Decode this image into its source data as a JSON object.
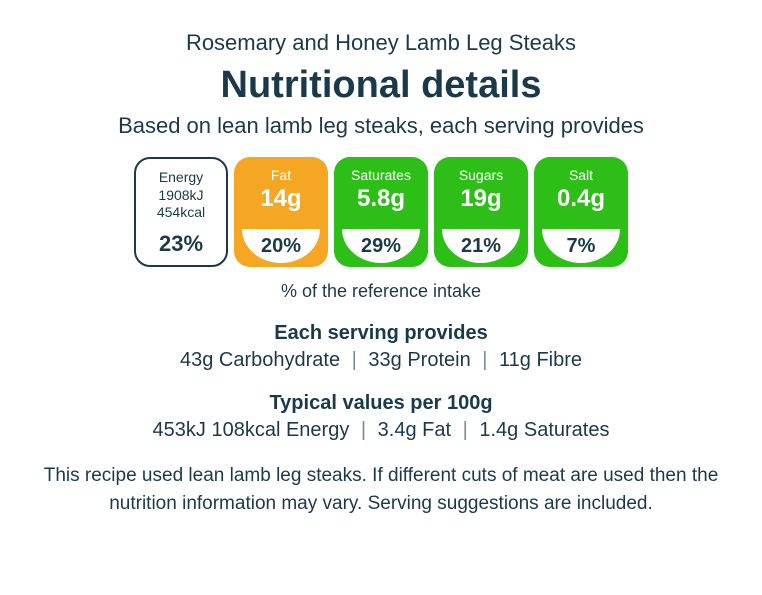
{
  "recipe_title": "Rosemary and Honey Lamb Leg Steaks",
  "heading": "Nutritional details",
  "subtitle": "Based on lean lamb leg steaks, each serving provides",
  "badges": [
    {
      "label": "Energy",
      "value": "",
      "sub1": "1908kJ",
      "sub2": "454kcal",
      "percent": "23%",
      "bg": "white",
      "color": "#ffffff"
    },
    {
      "label": "Fat",
      "value": "14g",
      "percent": "20%",
      "bg": "filled",
      "color": "#f5a623"
    },
    {
      "label": "Saturates",
      "value": "5.8g",
      "percent": "29%",
      "bg": "filled",
      "color": "#2dbf17"
    },
    {
      "label": "Sugars",
      "value": "19g",
      "percent": "21%",
      "bg": "filled",
      "color": "#2dbf17"
    },
    {
      "label": "Salt",
      "value": "0.4g",
      "percent": "7%",
      "bg": "filled",
      "color": "#2dbf17"
    }
  ],
  "ref_intake": "% of the reference intake",
  "serving": {
    "heading": "Each serving provides",
    "items": [
      "43g Carbohydrate",
      "33g Protein",
      "11g Fibre"
    ]
  },
  "per100g": {
    "heading": "Typical values per 100g",
    "items": [
      "453kJ 108kcal Energy",
      "3.4g Fat",
      "1.4g Saturates"
    ]
  },
  "footnote": "This recipe used lean lamb leg steaks. If different cuts of meat are used then the nutrition information may vary. Serving suggestions are included.",
  "colors": {
    "text": "#1a3a4a",
    "amber": "#f5a623",
    "green": "#2dbf17",
    "white": "#ffffff"
  }
}
